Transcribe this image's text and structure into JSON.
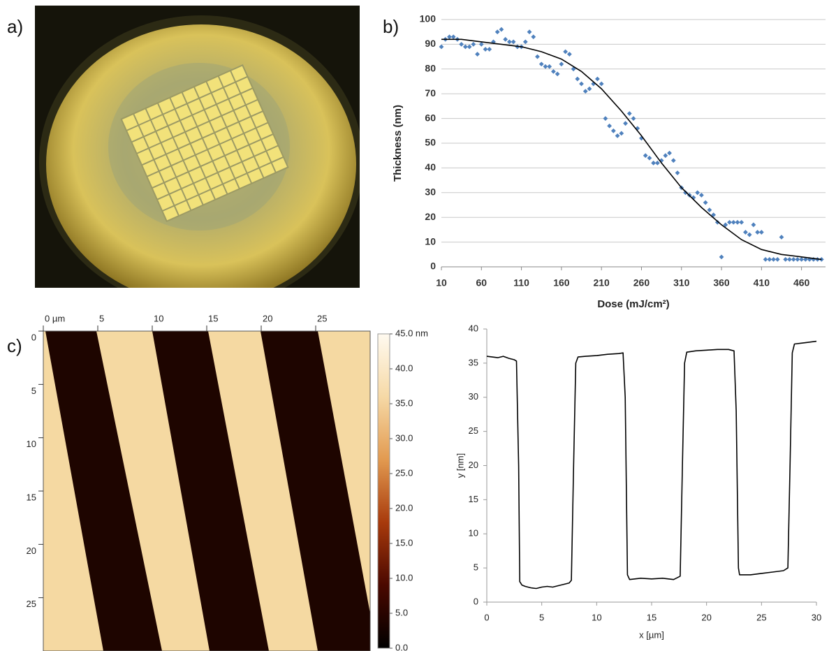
{
  "chart_data": [
    {
      "type": "image",
      "panel_label": "a)"
    },
    {
      "type": "scatter",
      "panel_label": "b)",
      "xlabel": "Dose (mJ/cm²)",
      "ylabel": "Thickness (nm)",
      "xlim": [
        10,
        490
      ],
      "xticks": [
        10,
        60,
        110,
        160,
        210,
        260,
        310,
        360,
        410,
        460
      ],
      "ylim": [
        0,
        100
      ],
      "yticks": [
        0,
        10,
        20,
        30,
        40,
        50,
        60,
        70,
        80,
        90,
        100
      ],
      "grid": true,
      "points": {
        "color": "#4f81bd",
        "x": [
          10,
          15,
          20,
          25,
          30,
          35,
          40,
          45,
          50,
          55,
          60,
          65,
          70,
          75,
          80,
          85,
          90,
          95,
          100,
          105,
          110,
          115,
          120,
          125,
          130,
          135,
          140,
          145,
          150,
          155,
          160,
          165,
          170,
          175,
          180,
          185,
          190,
          195,
          200,
          205,
          210,
          215,
          220,
          225,
          230,
          235,
          240,
          245,
          250,
          255,
          260,
          265,
          270,
          275,
          280,
          285,
          290,
          295,
          300,
          305,
          310,
          315,
          320,
          325,
          330,
          335,
          340,
          345,
          350,
          355,
          360,
          365,
          370,
          375,
          380,
          385,
          390,
          395,
          400,
          405,
          410,
          415,
          420,
          425,
          430,
          435,
          440,
          445,
          450,
          455,
          460,
          465,
          470,
          475,
          480,
          485
        ],
        "values": [
          89,
          92,
          93,
          93,
          92,
          90,
          89,
          89,
          90,
          86,
          90,
          88,
          88,
          91,
          95,
          96,
          92,
          91,
          91,
          89,
          89,
          91,
          95,
          93,
          85,
          82,
          81,
          81,
          79,
          78,
          82,
          87,
          86,
          80,
          76,
          74,
          71,
          72,
          74,
          76,
          74,
          60,
          57,
          55,
          53,
          54,
          58,
          62,
          60,
          56,
          52,
          45,
          44,
          42,
          42,
          43,
          45,
          46,
          43,
          38,
          32,
          30,
          29,
          28,
          30,
          29,
          26,
          23,
          21,
          18,
          4,
          17,
          18,
          18,
          18,
          18,
          14,
          13,
          17,
          14,
          14,
          3,
          3,
          3,
          3,
          12,
          3,
          3,
          3,
          3,
          3,
          3,
          3,
          3,
          3,
          3
        ]
      },
      "fit": {
        "color": "#000000",
        "x": [
          10,
          35,
          60,
          85,
          110,
          135,
          160,
          185,
          210,
          235,
          260,
          285,
          310,
          335,
          360,
          385,
          410,
          435,
          460,
          485
        ],
        "values": [
          92,
          92,
          91,
          90,
          89,
          87,
          84,
          79,
          72,
          63,
          53,
          42,
          32,
          24,
          17,
          11,
          7,
          5,
          4,
          3
        ]
      }
    },
    {
      "type": "heatmap",
      "panel_label": "c)",
      "xlim": [
        0,
        30
      ],
      "xticks": [
        {
          "value": 0,
          "label": "0 µm"
        },
        5,
        10,
        15,
        20,
        25
      ],
      "ylim": [
        0,
        30
      ],
      "yticks": [
        0,
        5,
        10,
        15,
        20,
        25
      ],
      "clim": [
        0,
        45
      ],
      "cticks": [
        {
          "value": 0,
          "label": "0.0"
        },
        {
          "value": 5,
          "label": "5.0"
        },
        {
          "value": 10,
          "label": "10.0"
        },
        {
          "value": 15,
          "label": "15.0"
        },
        {
          "value": 20,
          "label": "20.0"
        },
        {
          "value": 25,
          "label": "25.0"
        },
        {
          "value": 30,
          "label": "30.0"
        },
        {
          "value": 35,
          "label": "35.0"
        },
        {
          "value": 40,
          "label": "40.0"
        },
        {
          "value": 45,
          "label": "45.0 nm"
        }
      ],
      "colormap": [
        "#000000",
        "#4a0800",
        "#a83a0c",
        "#e29a50",
        "#f6d9a6",
        "#fffaf0"
      ]
    },
    {
      "type": "line",
      "xlabel": "x [µm]",
      "ylabel": "y [nm]",
      "xlim": [
        0,
        30
      ],
      "xticks": [
        0,
        5,
        10,
        15,
        20,
        25,
        30
      ],
      "ylim": [
        0,
        40
      ],
      "yticks": [
        0,
        5,
        10,
        15,
        20,
        25,
        30,
        35,
        40
      ],
      "color": "#000000",
      "x": [
        0,
        0.5,
        1,
        1.5,
        2,
        2.5,
        2.7,
        2.9,
        3.0,
        3.2,
        3.5,
        4,
        4.5,
        5,
        5.5,
        6,
        6.5,
        7,
        7.5,
        7.7,
        7.9,
        8.1,
        8.3,
        9,
        10,
        11,
        12,
        12.4,
        12.6,
        12.8,
        13,
        14,
        15,
        16,
        17,
        17.6,
        17.8,
        18,
        18.2,
        19,
        20,
        21,
        22,
        22.5,
        22.7,
        22.9,
        23,
        24,
        25,
        26,
        27,
        27.4,
        27.6,
        27.8,
        28,
        29,
        30
      ],
      "values": [
        36,
        35.9,
        35.8,
        36,
        35.7,
        35.5,
        35.3,
        20,
        3,
        2.5,
        2.3,
        2.1,
        2.0,
        2.2,
        2.3,
        2.2,
        2.4,
        2.6,
        2.8,
        3.2,
        20,
        35,
        35.9,
        36,
        36.1,
        36.3,
        36.4,
        36.5,
        30,
        4,
        3.3,
        3.5,
        3.4,
        3.5,
        3.3,
        3.8,
        20,
        35,
        36.6,
        36.8,
        36.9,
        37,
        37,
        36.8,
        28,
        5,
        4,
        4,
        4.2,
        4.4,
        4.6,
        5,
        20,
        36.5,
        37.8,
        38,
        38.2
      ]
    }
  ]
}
